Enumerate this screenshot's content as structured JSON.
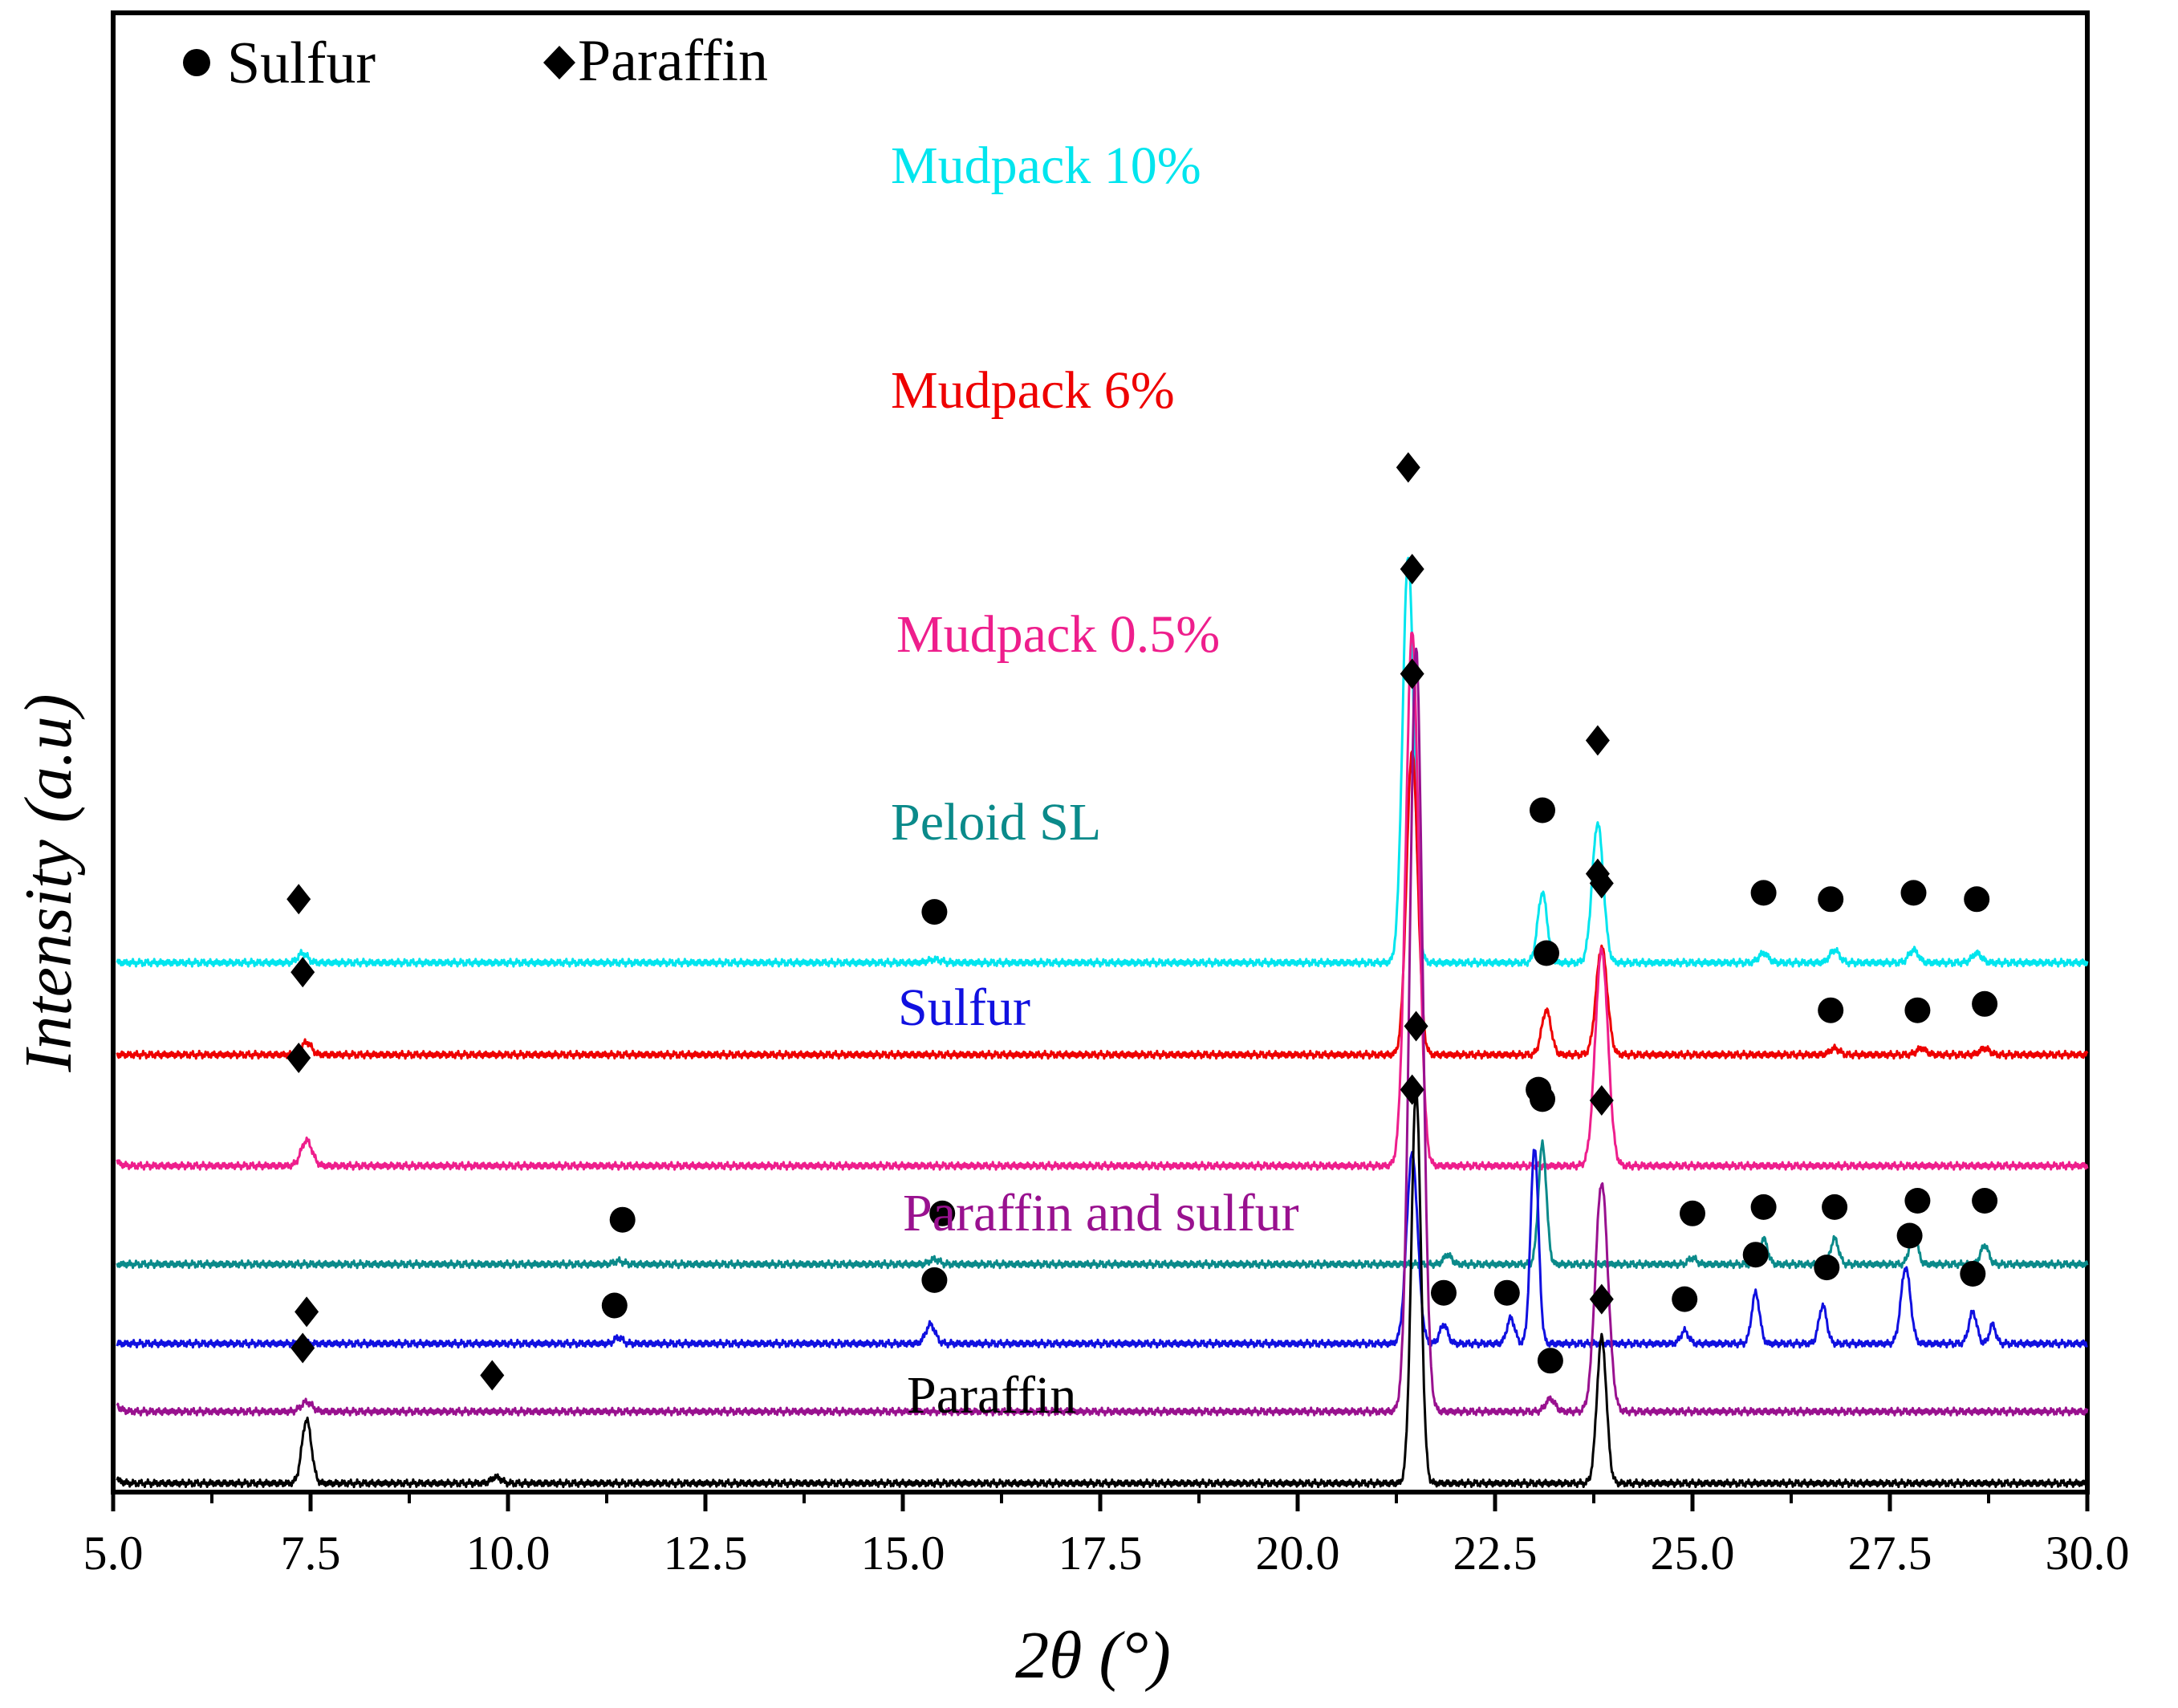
{
  "chart_data": {
    "type": "line",
    "title": "",
    "xlabel": "2θ (°)",
    "ylabel": "Intensity (a.u)",
    "xlim": [
      5.0,
      30.0
    ],
    "xticks": [
      "5.0",
      "7.5",
      "10.0",
      "12.5",
      "15.0",
      "17.5",
      "20.0",
      "22.5",
      "25.0",
      "27.5",
      "30.0"
    ],
    "grid": false,
    "legend": {
      "position": "top-left",
      "entries": [
        {
          "symbol": "circle",
          "label": "Sulfur"
        },
        {
          "symbol": "diamond",
          "label": "Paraffin"
        }
      ]
    },
    "series": [
      {
        "name": "Mudpack 10%",
        "color": "#00e5ee",
        "baseline": 82,
        "start_rise": 0,
        "peaks": [
          [
            7.4,
            1.5,
            0.06
          ],
          [
            15.4,
            0.5,
            0.08
          ],
          [
            21.4,
            64,
            0.07
          ],
          [
            23.1,
            11,
            0.06
          ],
          [
            23.8,
            22,
            0.07
          ],
          [
            25.9,
            1.5,
            0.06
          ],
          [
            26.8,
            2,
            0.06
          ],
          [
            27.8,
            2,
            0.06
          ],
          [
            28.6,
            1.5,
            0.06
          ]
        ],
        "markers": [
          {
            "x": 7.35,
            "symbol": "diamond",
            "above": 10
          },
          {
            "x": 15.4,
            "symbol": "circle",
            "above": 8
          },
          {
            "x": 21.4,
            "symbol": "diamond",
            "above": 78
          },
          {
            "x": 23.1,
            "symbol": "circle",
            "above": 24
          },
          {
            "x": 23.8,
            "symbol": "diamond",
            "above": 35
          },
          {
            "x": 25.9,
            "symbol": "circle",
            "above": 11
          },
          {
            "x": 26.75,
            "symbol": "circle",
            "above": 10
          },
          {
            "x": 27.8,
            "symbol": "circle",
            "above": 11
          },
          {
            "x": 28.6,
            "symbol": "circle",
            "above": 10
          }
        ]
      },
      {
        "name": "Mudpack 6%",
        "color": "#ee0000",
        "baseline": 67.5,
        "start_rise": 0,
        "peaks": [
          [
            7.45,
            2,
            0.06
          ],
          [
            21.45,
            48,
            0.07
          ],
          [
            23.15,
            7,
            0.06
          ],
          [
            23.85,
            17,
            0.07
          ],
          [
            26.8,
            1,
            0.06
          ],
          [
            27.9,
            1,
            0.06
          ],
          [
            28.7,
            1,
            0.06
          ]
        ],
        "markers": [
          {
            "x": 7.4,
            "symbol": "diamond",
            "above": 13
          },
          {
            "x": 21.45,
            "symbol": "diamond",
            "above": 60
          },
          {
            "x": 23.15,
            "symbol": "circle",
            "above": 16
          },
          {
            "x": 23.85,
            "symbol": "diamond",
            "above": 27
          },
          {
            "x": 26.75,
            "symbol": "circle",
            "above": 7
          },
          {
            "x": 27.85,
            "symbol": "circle",
            "above": 7
          },
          {
            "x": 28.7,
            "symbol": "circle",
            "above": 8
          }
        ]
      },
      {
        "name": "Mudpack 0.5%",
        "color": "#ee1e8c",
        "baseline": 50,
        "start_rise": 2,
        "peaks": [
          [
            7.45,
            4,
            0.07
          ],
          [
            21.45,
            84,
            0.08
          ],
          [
            23.85,
            34,
            0.08
          ]
        ],
        "markers": [
          {
            "x": 7.35,
            "symbol": "diamond",
            "above": 17
          },
          {
            "x": 21.45,
            "symbol": "diamond",
            "above": 94
          },
          {
            "x": 23.8,
            "symbol": "diamond",
            "above": 46
          }
        ]
      },
      {
        "name": "Peloid SL",
        "color": "#0a8a8a",
        "baseline": 34.5,
        "start_rise": 0,
        "peaks": [
          [
            11.4,
            0.5,
            0.06
          ],
          [
            15.4,
            0.8,
            0.06
          ],
          [
            21.9,
            1.5,
            0.05
          ],
          [
            23.1,
            19,
            0.05
          ],
          [
            25.0,
            1,
            0.05
          ],
          [
            25.9,
            4,
            0.05
          ],
          [
            26.8,
            4,
            0.05
          ],
          [
            27.8,
            5,
            0.05
          ],
          [
            28.7,
            3,
            0.05
          ]
        ],
        "markers": [
          {
            "x": 11.45,
            "symbol": "circle",
            "above": 7
          },
          {
            "x": 15.5,
            "symbol": "circle",
            "above": 8
          },
          {
            "x": 23.1,
            "symbol": "circle",
            "above": 26
          },
          {
            "x": 25.0,
            "symbol": "circle",
            "above": 8
          },
          {
            "x": 25.9,
            "symbol": "circle",
            "above": 9
          },
          {
            "x": 26.8,
            "symbol": "circle",
            "above": 9
          },
          {
            "x": 27.85,
            "symbol": "circle",
            "above": 10
          },
          {
            "x": 28.7,
            "symbol": "circle",
            "above": 10
          }
        ]
      },
      {
        "name": "Sulfur",
        "color": "#1010e0",
        "baseline": 22,
        "start_rise": 0,
        "peaks": [
          [
            11.4,
            1,
            0.05
          ],
          [
            15.35,
            3,
            0.06
          ],
          [
            21.45,
            30,
            0.07
          ],
          [
            21.85,
            3,
            0.05
          ],
          [
            22.7,
            4,
            0.05
          ],
          [
            23.0,
            31,
            0.05
          ],
          [
            24.9,
            2,
            0.05
          ],
          [
            25.8,
            8,
            0.05
          ],
          [
            26.65,
            6,
            0.05
          ],
          [
            27.7,
            12,
            0.06
          ],
          [
            28.55,
            5,
            0.05
          ],
          [
            28.8,
            3,
            0.04
          ]
        ],
        "markers": [
          {
            "x": 11.35,
            "symbol": "circle",
            "above": 6
          },
          {
            "x": 15.4,
            "symbol": "circle",
            "above": 10
          },
          {
            "x": 21.45,
            "symbol": "diamond",
            "above": 40
          },
          {
            "x": 21.85,
            "symbol": "circle",
            "above": 8
          },
          {
            "x": 22.65,
            "symbol": "circle",
            "above": 8
          },
          {
            "x": 23.05,
            "symbol": "circle",
            "above": 40
          },
          {
            "x": 24.9,
            "symbol": "circle",
            "above": 7
          },
          {
            "x": 25.8,
            "symbol": "circle",
            "above": 14
          },
          {
            "x": 26.7,
            "symbol": "circle",
            "above": 12
          },
          {
            "x": 27.75,
            "symbol": "circle",
            "above": 17
          },
          {
            "x": 28.55,
            "symbol": "circle",
            "above": 11
          }
        ]
      },
      {
        "name": "Paraffin and sulfur",
        "color": "#99118f",
        "baseline": 11.3,
        "start_rise": 3,
        "peaks": [
          [
            7.45,
            1.5,
            0.07
          ],
          [
            21.5,
            120,
            0.08
          ],
          [
            23.2,
            2,
            0.06
          ],
          [
            23.85,
            36,
            0.08
          ]
        ],
        "markers": [
          {
            "x": 7.4,
            "symbol": "diamond",
            "above": 10
          },
          {
            "x": 23.2,
            "symbol": "circle",
            "above": 8
          },
          {
            "x": 23.85,
            "symbol": "diamond",
            "above": 49
          }
        ]
      },
      {
        "name": "Paraffin",
        "color": "#000000",
        "baseline": 0,
        "start_rise": 2,
        "peaks": [
          [
            7.45,
            10,
            0.06
          ],
          [
            9.85,
            1,
            0.06
          ],
          [
            21.5,
            62,
            0.06
          ],
          [
            23.85,
            23,
            0.06
          ]
        ],
        "markers": [
          {
            "x": 7.45,
            "symbol": "diamond",
            "above": 27
          },
          {
            "x": 9.8,
            "symbol": "diamond",
            "above": 17
          },
          {
            "x": 21.5,
            "symbol": "diamond",
            "above": 72
          },
          {
            "x": 23.85,
            "symbol": "diamond",
            "above": 29
          }
        ]
      }
    ]
  }
}
